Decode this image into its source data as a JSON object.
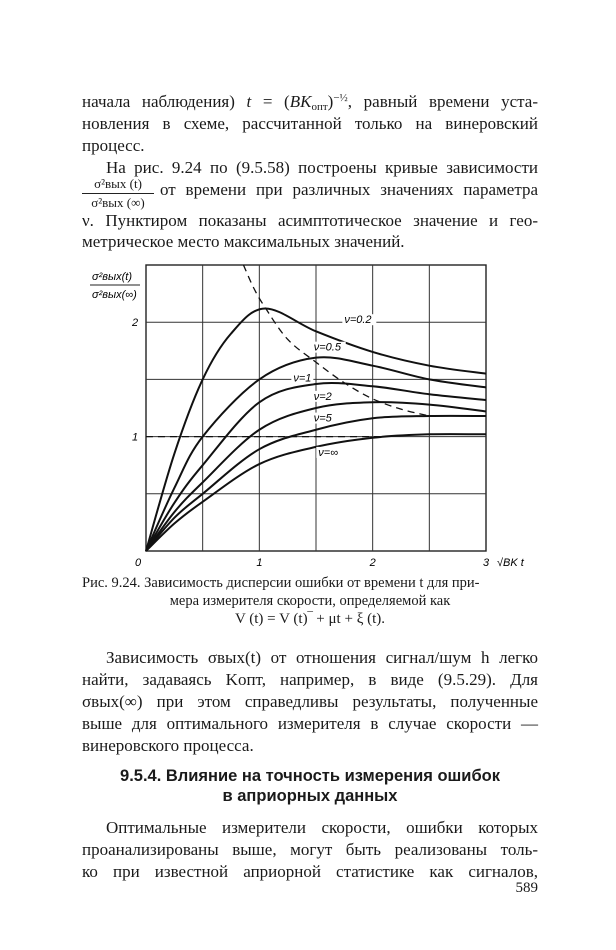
{
  "top_text": [
    {
      "top": 0,
      "parts": [
        {
          "t": "начала наблюдения) "
        },
        {
          "t": "t",
          "s": "i"
        },
        {
          "t": " = ("
        },
        {
          "t": "BK",
          "s": "i"
        },
        {
          "t": "опт",
          "s": "sub"
        },
        {
          "t": ")"
        },
        {
          "t": "−½",
          "s": "sup"
        },
        {
          "t": ", равный времени уста-"
        }
      ]
    },
    {
      "top": 1,
      "parts": [
        {
          "t": "новления в схеме, рассчитанной только на винеровский"
        }
      ]
    },
    {
      "top": 2,
      "parts": [
        {
          "t": "процесс."
        }
      ],
      "align": "l"
    },
    {
      "top": 3,
      "parts": [
        {
          "t": "На рис. 9.24 по (9.5.58) построены кривые зависимости"
        }
      ],
      "indent": true
    }
  ],
  "fraction": {
    "numerator": "σ²вых (t)",
    "denominator": "σ²вых (∞)"
  },
  "fraction_line": "от времени при различных значениях параметра",
  "text_after_fraction": [
    "ν. Пунктиром показаны асимптотическое значение и гео-",
    "метрическое место максимальных значений."
  ],
  "chart_data": {
    "type": "line",
    "ylabel": "σ²вых(t) / σ²вых(∞)",
    "xlabel": "√BK t",
    "xlim": [
      0,
      3
    ],
    "ylim": [
      0,
      2.5
    ],
    "grid": true,
    "grid_step": 0.5,
    "x_ticks": [
      "0",
      "1",
      "2",
      "3"
    ],
    "y_ticks": [
      "1",
      "2"
    ],
    "series": [
      {
        "name": "ν=0.2",
        "x": [
          0,
          0.25,
          0.5,
          0.75,
          1.05,
          1.5,
          2,
          2.5,
          3
        ],
        "y": [
          0,
          0.85,
          1.5,
          1.9,
          2.12,
          1.92,
          1.74,
          1.62,
          1.55
        ]
      },
      {
        "name": "ν=0.5",
        "x": [
          0,
          0.25,
          0.5,
          1,
          1.5,
          2,
          2.5,
          3
        ],
        "y": [
          0,
          0.55,
          1.0,
          1.5,
          1.69,
          1.62,
          1.5,
          1.43
        ]
      },
      {
        "name": "ν=1",
        "x": [
          0,
          0.25,
          0.5,
          1,
          1.5,
          2,
          2.5,
          3
        ],
        "y": [
          0,
          0.42,
          0.75,
          1.3,
          1.46,
          1.44,
          1.37,
          1.32
        ]
      },
      {
        "name": "ν=2",
        "x": [
          0,
          0.25,
          0.5,
          1,
          1.5,
          2,
          2.5,
          3
        ],
        "y": [
          0,
          0.34,
          0.6,
          1.06,
          1.25,
          1.3,
          1.28,
          1.22
        ]
      },
      {
        "name": "ν=5",
        "x": [
          0,
          0.25,
          0.5,
          1,
          1.5,
          2,
          2.5,
          3
        ],
        "y": [
          0,
          0.29,
          0.5,
          0.89,
          1.06,
          1.16,
          1.18,
          1.18
        ]
      },
      {
        "name": "ν=∞",
        "x": [
          0,
          0.25,
          0.5,
          1,
          1.5,
          2,
          2.5,
          3
        ],
        "y": [
          0,
          0.24,
          0.43,
          0.76,
          0.91,
          0.99,
          1.02,
          1.02
        ]
      }
    ],
    "dashed": [
      {
        "kind": "asymptote",
        "x": [
          0,
          2.1
        ],
        "y": [
          1,
          1
        ]
      },
      {
        "kind": "locus-of-maxima",
        "x": [
          0.86,
          0.95,
          1.05,
          1.25,
          1.5,
          1.75,
          2,
          2.25,
          2.5
        ],
        "y": [
          2.5,
          2.3,
          2.13,
          1.85,
          1.65,
          1.47,
          1.33,
          1.24,
          1.18
        ]
      }
    ],
    "labels": [
      {
        "t": "ν=0.2",
        "x": 1.75,
        "y": 2.0
      },
      {
        "t": "ν=0.5",
        "x": 1.48,
        "y": 1.76
      },
      {
        "t": "ν=1",
        "x": 1.3,
        "y": 1.49
      },
      {
        "t": "ν=2",
        "x": 1.48,
        "y": 1.33
      },
      {
        "t": "ν=5",
        "x": 1.48,
        "y": 1.14
      },
      {
        "t": "ν=∞",
        "x": 1.52,
        "y": 0.84
      }
    ]
  },
  "caption": {
    "line1": "Рис. 9.24. Зависимость дисперсии ошибки от времени  t для при-",
    "line2": "мера измерителя скорости, определяемой как",
    "formula": "V (t) = V (t)‾ + μt + ξ (t)."
  },
  "paragraph2": [
    "Зависимость σвых(t) от отношения сигнал/шум h легко",
    "найти, задаваясь Kопт, например, в виде (9.5.29). Для",
    "σвых(∞) при этом справедливы результаты, полученные",
    "выше для оптимального измерителя в случае скорости —",
    "винеровского процесса."
  ],
  "heading": {
    "line1": "9.5.4. Влияние на точность измерения ошибок",
    "line2": "в априорных данных"
  },
  "paragraph3": [
    "Оптимальные измерители скорости, ошибки которых",
    "проанализированы выше, могут быть реализованы толь-",
    "ко при известной априорной статистике как сигналов,"
  ],
  "page_number": "589"
}
